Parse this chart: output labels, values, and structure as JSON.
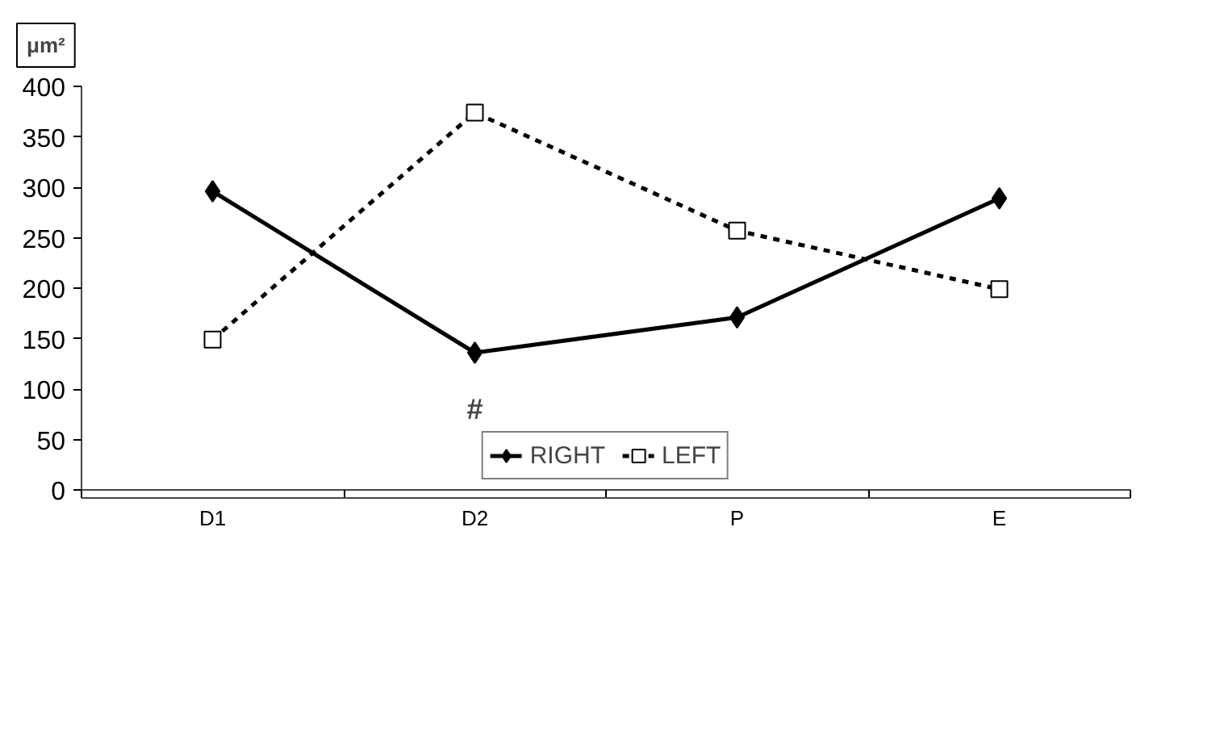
{
  "chart_data": {
    "type": "line",
    "ylabel": "μm²",
    "categories": [
      "D1",
      "D2",
      "P",
      "E"
    ],
    "series": [
      {
        "name": "RIGHT",
        "color": "#000000",
        "values": [
          296,
          136,
          171,
          289
        ],
        "marker": "diamond",
        "line_style": "solid"
      },
      {
        "name": "LEFT",
        "color": "#000000",
        "values": [
          149,
          374,
          257,
          199
        ],
        "marker": "square",
        "line_style": "dashed"
      }
    ],
    "ylim": [
      0,
      400
    ],
    "yticks": [
      0,
      50,
      100,
      150,
      200,
      250,
      300,
      350,
      400
    ],
    "grid": false,
    "legend": "bottom",
    "annotations": [
      "#"
    ]
  }
}
